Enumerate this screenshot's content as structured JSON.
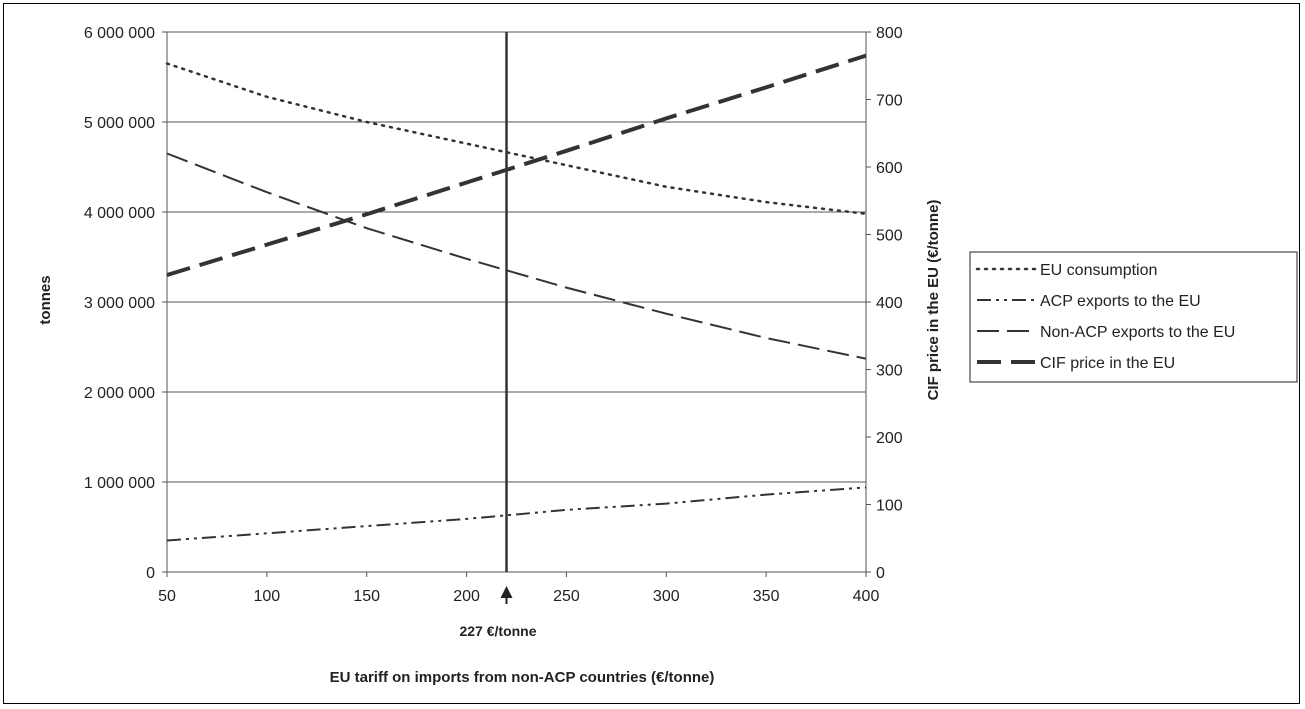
{
  "chart_data": {
    "type": "line",
    "title": "",
    "xlabel": "EU tariff on imports from non-ACP countries (€/tonne)",
    "ylabel": "tonnes",
    "y2label": "CIF price in the EU (€/tonne)",
    "xlim": [
      50,
      400
    ],
    "ylim": [
      0,
      6000000
    ],
    "y2lim": [
      0,
      800
    ],
    "grid": true,
    "legend_position": "right",
    "x_ticks": [
      "50",
      "100",
      "150",
      "200",
      "250",
      "300",
      "350",
      "400"
    ],
    "y_ticks": [
      "0",
      "1 000 000",
      "2 000 000",
      "3 000 000",
      "4 000 000",
      "5 000 000",
      "6 000 000"
    ],
    "y2_ticks": [
      "0",
      "100",
      "200",
      "300",
      "400",
      "500",
      "600",
      "700",
      "800"
    ],
    "x": [
      50,
      100,
      150,
      200,
      250,
      300,
      350,
      400
    ],
    "series": [
      {
        "name": "EU consumption",
        "axis": "left",
        "style": "dotted",
        "values": [
          5650000,
          5280000,
          5000000,
          4760000,
          4520000,
          4280000,
          4110000,
          3980000
        ]
      },
      {
        "name": "ACP exports to the EU",
        "axis": "left",
        "style": "dashdotdot",
        "values": [
          350000,
          430000,
          510000,
          590000,
          690000,
          760000,
          860000,
          940000
        ]
      },
      {
        "name": "Non-ACP exports to the EU",
        "axis": "left",
        "style": "longdash",
        "values": [
          4650000,
          4220000,
          3820000,
          3480000,
          3160000,
          2870000,
          2600000,
          2370000
        ]
      },
      {
        "name": "CIF price in the EU",
        "axis": "right",
        "style": "heavydash",
        "values": [
          440,
          485,
          530,
          577,
          624,
          672,
          718,
          765
        ]
      }
    ],
    "annotation": {
      "x": 220,
      "label": "227 €/tonne"
    }
  }
}
